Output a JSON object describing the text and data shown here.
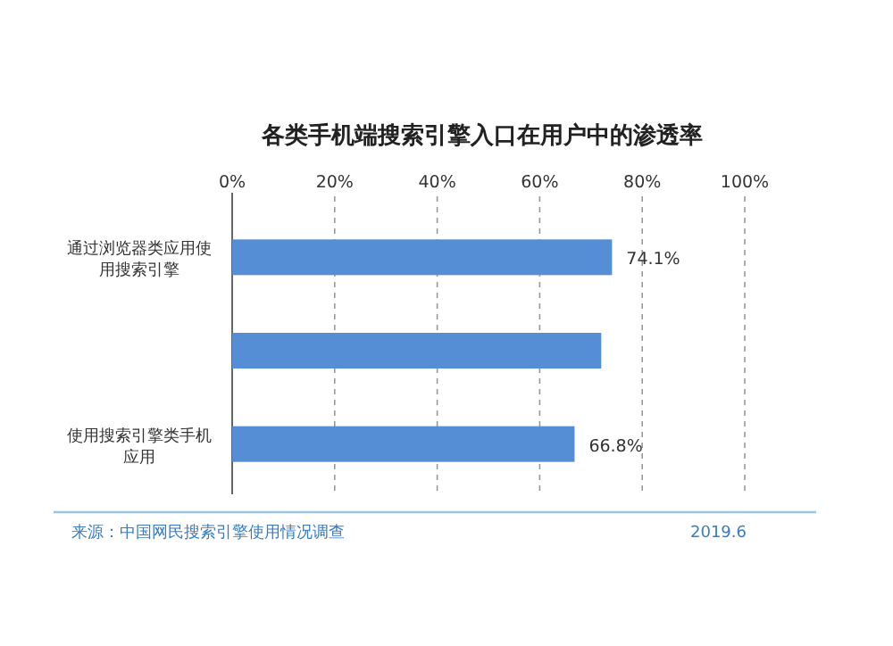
{
  "chart_data": {
    "type": "bar",
    "orientation": "horizontal",
    "title": "各类手机端搜索引擎入口在用户中的渗透率",
    "categories": [
      "通过浏览器类应用使用搜索引擎",
      null,
      "使用搜索引擎类手机应用"
    ],
    "values": [
      74.1,
      72.0,
      66.8
    ],
    "value_labels": [
      "74.1%",
      null,
      "66.8%"
    ],
    "color": "#558ed5",
    "xlim": [
      0,
      100
    ],
    "xticks": [
      {
        "value": 0,
        "label": "0%"
      },
      {
        "value": 20,
        "label": "20%"
      },
      {
        "value": 40,
        "label": "40%"
      },
      {
        "value": 60,
        "label": "60%"
      },
      {
        "value": 80,
        "label": "80%"
      },
      {
        "value": 100,
        "label": "100%"
      }
    ],
    "grid": "x",
    "annotations": [
      "来源：中国网民搜索引擎使用情况调查",
      "2019.6"
    ]
  }
}
